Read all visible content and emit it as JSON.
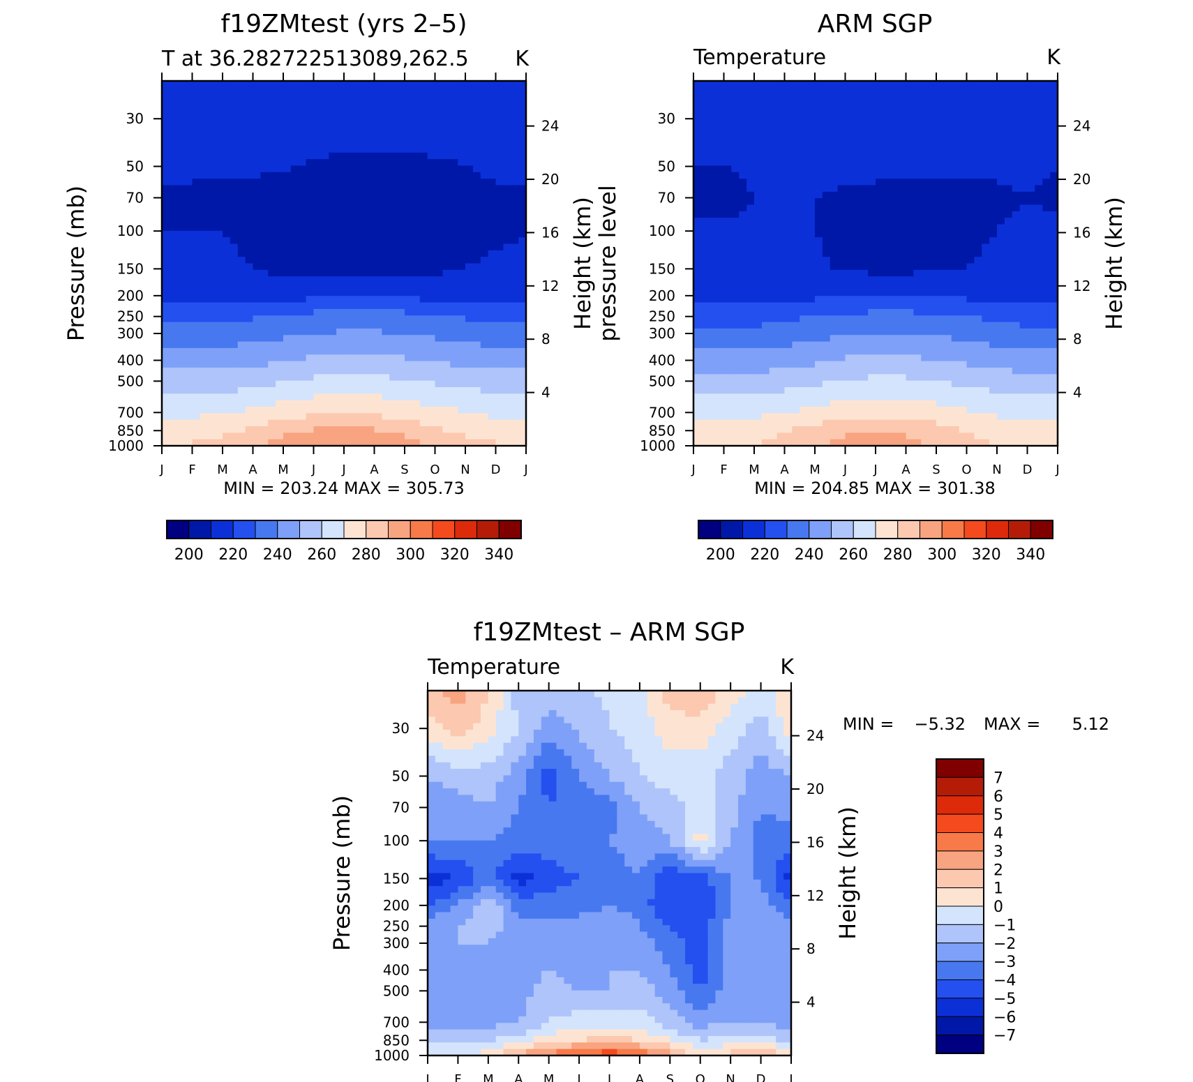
{
  "colors": {
    "abs_scale": [
      "#000080",
      "#0018a8",
      "#0c30d8",
      "#2450f0",
      "#4878f0",
      "#7ea0f8",
      "#aec4fa",
      "#d4e4fc",
      "#fde4d2",
      "#fcc8b0",
      "#f8a480",
      "#f87a48",
      "#f44a1e",
      "#dc2a0a",
      "#b41c08",
      "#800000"
    ],
    "diff_scale": [
      "#000080",
      "#0018a8",
      "#0c30d8",
      "#2450f0",
      "#4878f0",
      "#7ea0f8",
      "#aec4fa",
      "#d4e4fc",
      "#fde4d2",
      "#fcc8b0",
      "#f8a480",
      "#f87a48",
      "#f44a1e",
      "#dc2a0a",
      "#b41c08",
      "#800000"
    ]
  },
  "chart_data": [
    {
      "type": "heatmap",
      "title": "f19ZMtest (yrs 2–5)",
      "left_label": "T at 36.282722513089,262.5",
      "right_label": "K",
      "ylabel": "Pressure (mb)",
      "ylabel_right": "Height (km)",
      "x_ticks": [
        "J",
        "F",
        "M",
        "A",
        "M",
        "J",
        "J",
        "A",
        "S",
        "O",
        "N",
        "D",
        "J"
      ],
      "y_ticks": [
        "30",
        "50",
        "70",
        "100",
        "150",
        "200",
        "250",
        "300",
        "400",
        "500",
        "700",
        "850",
        "1000"
      ],
      "y_tick_values": [
        30,
        50,
        70,
        100,
        150,
        200,
        250,
        300,
        400,
        500,
        700,
        850,
        1000
      ],
      "y_range_mb": [
        20,
        1000
      ],
      "height_ticks_km": [
        4,
        8,
        12,
        16,
        20,
        24
      ],
      "stats": "MIN = 203.24 MAX = 305.73",
      "colorbar_levels": [
        200,
        210,
        220,
        230,
        240,
        250,
        260,
        270,
        280,
        290,
        300,
        310,
        320,
        330,
        340
      ],
      "colorbar_labels": [
        "200",
        "220",
        "240",
        "260",
        "280",
        "300",
        "320",
        "340"
      ],
      "field": {
        "months": [
          0,
          1,
          2,
          3,
          4,
          5,
          6,
          7,
          8,
          9,
          10,
          11,
          12
        ],
        "levels_mb": [
          20,
          30,
          50,
          70,
          100,
          150,
          200,
          250,
          300,
          400,
          500,
          700,
          850,
          1000
        ],
        "values": [
          [
            218,
            218,
            218,
            218,
            216,
            214,
            213,
            214,
            216,
            218,
            218,
            218,
            218
          ],
          [
            218,
            218,
            218,
            218,
            217,
            216,
            215,
            216,
            217,
            218,
            218,
            218,
            218
          ],
          [
            212,
            212,
            211,
            211,
            211,
            209,
            208,
            208,
            207,
            208,
            210,
            212,
            212
          ],
          [
            208,
            208,
            208,
            208,
            206,
            206,
            205,
            205,
            205,
            206,
            206,
            208,
            208
          ],
          [
            210,
            210,
            210,
            208,
            206,
            206,
            205,
            205,
            205,
            205,
            206,
            208,
            210
          ],
          [
            212,
            212,
            212,
            210,
            208,
            208,
            207,
            207,
            207,
            208,
            210,
            212,
            212
          ],
          [
            216,
            216,
            216,
            216,
            216,
            218,
            219,
            219,
            218,
            217,
            216,
            216,
            216
          ],
          [
            228,
            228,
            228,
            229,
            231,
            233,
            234,
            234,
            233,
            231,
            229,
            228,
            228
          ],
          [
            235,
            235,
            235,
            236,
            238,
            240,
            241,
            241,
            240,
            238,
            236,
            235,
            235
          ],
          [
            245,
            245,
            245,
            247,
            249,
            252,
            253,
            253,
            251,
            249,
            247,
            245,
            245
          ],
          [
            255,
            255,
            255,
            257,
            259,
            262,
            263,
            263,
            261,
            259,
            257,
            255,
            255
          ],
          [
            268,
            268,
            269,
            272,
            275,
            278,
            279,
            278,
            276,
            273,
            270,
            268,
            268
          ],
          [
            276,
            276,
            278,
            282,
            287,
            291,
            293,
            291,
            287,
            282,
            278,
            276,
            276
          ],
          [
            281,
            281,
            283,
            288,
            294,
            299,
            302,
            299,
            294,
            288,
            283,
            281,
            281
          ]
        ]
      }
    },
    {
      "type": "heatmap",
      "title": "ARM SGP",
      "left_label": "Temperature",
      "right_label": "K",
      "ylabel": "pressure level",
      "ylabel_right": "Height (km)",
      "x_ticks": [
        "J",
        "F",
        "M",
        "A",
        "M",
        "J",
        "J",
        "A",
        "S",
        "O",
        "N",
        "D",
        "J"
      ],
      "y_ticks": [
        "30",
        "50",
        "70",
        "100",
        "150",
        "200",
        "250",
        "300",
        "400",
        "500",
        "700",
        "850",
        "1000"
      ],
      "y_tick_values": [
        30,
        50,
        70,
        100,
        150,
        200,
        250,
        300,
        400,
        500,
        700,
        850,
        1000
      ],
      "y_range_mb": [
        20,
        1000
      ],
      "height_ticks_km": [
        4,
        8,
        12,
        16,
        20,
        24
      ],
      "stats": "MIN = 204.85 MAX = 301.38",
      "colorbar_levels": [
        200,
        210,
        220,
        230,
        240,
        250,
        260,
        270,
        280,
        290,
        300,
        310,
        320,
        330,
        340
      ],
      "colorbar_labels": [
        "200",
        "220",
        "240",
        "260",
        "280",
        "300",
        "320",
        "340"
      ],
      "field": {
        "months": [
          0,
          1,
          2,
          3,
          4,
          5,
          6,
          7,
          8,
          9,
          10,
          11,
          12
        ],
        "levels_mb": [
          20,
          30,
          50,
          70,
          100,
          150,
          200,
          250,
          300,
          400,
          500,
          700,
          850,
          1000
        ],
        "values": [
          [
            216,
            216,
            216,
            216,
            215,
            213,
            212,
            213,
            215,
            216,
            216,
            216,
            216
          ],
          [
            217,
            217,
            217,
            217,
            216,
            215,
            214,
            215,
            216,
            217,
            217,
            217,
            217
          ],
          [
            210,
            210,
            211,
            212,
            212,
            212,
            212,
            211,
            211,
            211,
            211,
            211,
            210
          ],
          [
            209,
            208,
            210,
            211,
            210,
            209,
            208,
            208,
            208,
            208,
            209,
            210,
            209
          ],
          [
            211,
            211,
            211,
            211,
            210,
            208,
            207,
            207,
            207,
            208,
            210,
            211,
            211
          ],
          [
            213,
            213,
            213,
            212,
            211,
            209,
            208,
            208,
            209,
            210,
            212,
            213,
            213
          ],
          [
            217,
            217,
            217,
            217,
            218,
            219,
            220,
            220,
            219,
            218,
            217,
            217,
            217
          ],
          [
            226,
            226,
            226,
            228,
            230,
            232,
            233,
            233,
            232,
            230,
            228,
            226,
            226
          ],
          [
            233,
            233,
            233,
            235,
            237,
            239,
            240,
            240,
            239,
            237,
            235,
            233,
            233
          ],
          [
            244,
            244,
            244,
            246,
            248,
            251,
            252,
            252,
            250,
            248,
            246,
            244,
            244
          ],
          [
            254,
            254,
            254,
            256,
            258,
            261,
            262,
            262,
            260,
            258,
            256,
            254,
            254
          ],
          [
            266,
            266,
            267,
            270,
            273,
            276,
            277,
            276,
            274,
            271,
            268,
            266,
            266
          ],
          [
            274,
            274,
            276,
            280,
            284,
            288,
            290,
            288,
            284,
            280,
            276,
            274,
            274
          ],
          [
            278,
            278,
            280,
            284,
            289,
            294,
            297,
            294,
            289,
            284,
            280,
            278,
            278
          ]
        ]
      }
    },
    {
      "type": "heatmap",
      "title": "f19ZMtest – ARM SGP",
      "left_label": "Temperature",
      "right_label": "K",
      "ylabel": "Pressure (mb)",
      "ylabel_right": "Height (km)",
      "x_ticks": [
        "J",
        "F",
        "M",
        "A",
        "M",
        "J",
        "J",
        "A",
        "S",
        "O",
        "N",
        "D",
        "J"
      ],
      "y_ticks": [
        "30",
        "50",
        "70",
        "100",
        "150",
        "200",
        "250",
        "300",
        "400",
        "500",
        "700",
        "850",
        "1000"
      ],
      "y_tick_values": [
        30,
        50,
        70,
        100,
        150,
        200,
        250,
        300,
        400,
        500,
        700,
        850,
        1000
      ],
      "y_range_mb": [
        20,
        1000
      ],
      "height_ticks_km": [
        4,
        8,
        12,
        16,
        20,
        24
      ],
      "stats_min_label": "MIN =",
      "stats_min": "−5.32",
      "stats_max_label": "MAX =",
      "stats_max": "5.12",
      "colorbar_levels": [
        -7,
        -6,
        -5,
        -4,
        -3,
        -2,
        -1,
        0,
        1,
        2,
        3,
        4,
        5,
        6,
        7
      ],
      "colorbar_labels": [
        "7",
        "6",
        "5",
        "4",
        "3",
        "2",
        "1",
        "0",
        "−1",
        "−2",
        "−3",
        "−4",
        "−5",
        "−6",
        "−7"
      ],
      "field": {
        "months": [
          0,
          1,
          2,
          3,
          4,
          5,
          6,
          7,
          8,
          9,
          10,
          11,
          12
        ],
        "levels_mb": [
          20,
          30,
          50,
          70,
          100,
          150,
          200,
          250,
          300,
          400,
          500,
          700,
          850,
          1000
        ],
        "values": [
          [
            1.5,
            2.5,
            1.0,
            -1.5,
            -1.5,
            -1.2,
            -0.8,
            -0.5,
            1.5,
            2.0,
            0.5,
            -0.5,
            1.0
          ],
          [
            0.5,
            1.5,
            0.5,
            -1.0,
            -2.5,
            -1.8,
            -1.0,
            -0.5,
            0.5,
            0.5,
            -0.5,
            -1.5,
            0.5
          ],
          [
            -2.0,
            -1.5,
            -1.5,
            -2.5,
            -4.5,
            -3.0,
            -2.0,
            -1.0,
            -0.5,
            -0.5,
            -1.5,
            -2.5,
            -2.0
          ],
          [
            -2.5,
            -2.5,
            -2.0,
            -3.0,
            -4.0,
            -3.5,
            -3.5,
            -2.0,
            -1.5,
            -0.5,
            -1.5,
            -3.0,
            -2.5
          ],
          [
            -3.0,
            -3.0,
            -3.0,
            -3.5,
            -3.5,
            -3.0,
            -3.0,
            -2.5,
            -2.0,
            0.5,
            -2.0,
            -3.5,
            -3.5
          ],
          [
            -5.5,
            -5.0,
            -3.5,
            -5.5,
            -4.5,
            -4.0,
            -3.5,
            -3.0,
            -5.0,
            -4.5,
            -3.0,
            -3.0,
            -5.5
          ],
          [
            -4.0,
            -3.0,
            -1.0,
            -3.5,
            -3.5,
            -3.5,
            -3.0,
            -3.5,
            -5.0,
            -5.0,
            -3.0,
            -2.5,
            -4.0
          ],
          [
            -2.5,
            -2.0,
            -1.5,
            -2.5,
            -2.5,
            -2.5,
            -2.0,
            -3.0,
            -4.0,
            -4.5,
            -2.5,
            -2.0,
            -2.5
          ],
          [
            -2.5,
            -2.0,
            -2.0,
            -2.5,
            -2.0,
            -2.5,
            -2.0,
            -2.5,
            -3.5,
            -4.5,
            -2.5,
            -2.0,
            -2.5
          ],
          [
            -2.5,
            -2.5,
            -2.5,
            -2.5,
            -2.0,
            -2.5,
            -2.0,
            -2.0,
            -3.0,
            -4.5,
            -2.5,
            -2.5,
            -2.5
          ],
          [
            -2.5,
            -2.5,
            -2.5,
            -2.5,
            -1.5,
            -2.0,
            -2.0,
            -1.5,
            -2.5,
            -4.0,
            -2.5,
            -2.5,
            -2.5
          ],
          [
            -2.5,
            -2.5,
            -2.5,
            -2.0,
            -1.0,
            -0.5,
            -0.5,
            -0.5,
            -1.5,
            -2.5,
            -2.0,
            -2.0,
            -2.5
          ],
          [
            -1.5,
            -1.0,
            -1.0,
            -0.5,
            0.5,
            1.0,
            1.5,
            1.0,
            0.0,
            -1.0,
            -0.5,
            -0.5,
            -1.5
          ],
          [
            0.5,
            -0.5,
            0.5,
            2.5,
            3.5,
            4.0,
            5.0,
            4.0,
            2.5,
            0.5,
            1.5,
            2.0,
            1.0
          ]
        ]
      }
    }
  ]
}
